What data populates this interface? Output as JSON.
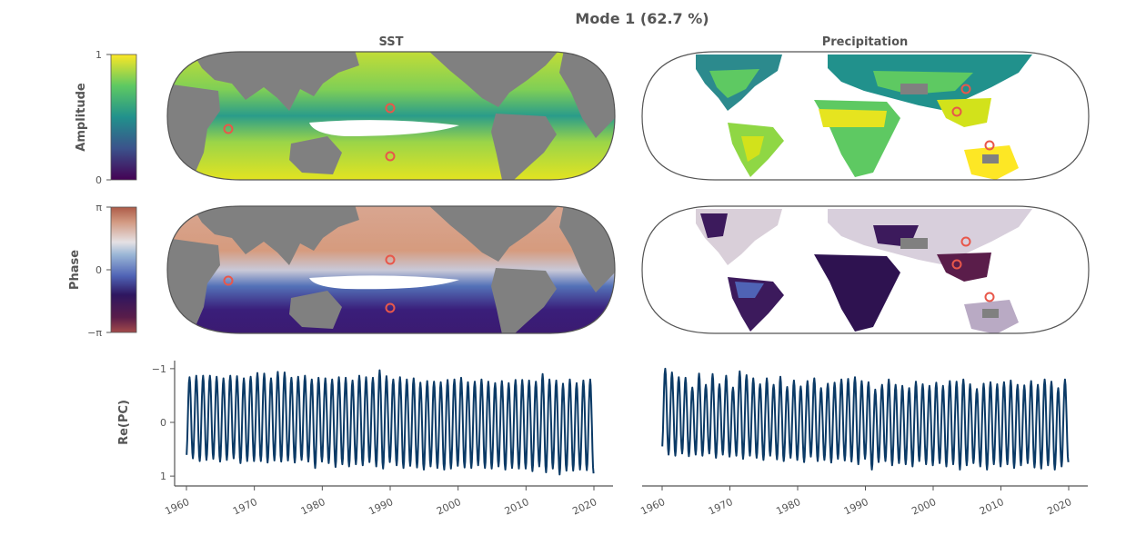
{
  "figure": {
    "suptitle": "Mode 1 (62.7 %)",
    "columns": [
      "SST",
      "Precipitation"
    ],
    "amplitude_colorbar": {
      "label": "Amplitude",
      "ticks": [
        "0",
        "1"
      ],
      "colormap": "viridis"
    },
    "phase_colorbar": {
      "label": "Phase",
      "ticks": [
        "−π",
        "0",
        "π"
      ],
      "colormap": "twilight_shifted"
    },
    "colors": {
      "land": "#808080",
      "line": "#0b3a66",
      "marker": "#e8574a",
      "frame": "#555555"
    }
  },
  "chart_data": [
    {
      "type": "line",
      "panel": "SST",
      "ylabel": "Re(PC)",
      "ylim": [
        -1.15,
        1.15
      ],
      "yticks": [
        "−1",
        "0",
        "1"
      ],
      "xlim": [
        1959.5,
        2022.5
      ],
      "xticks": [
        "1960",
        "1970",
        "1980",
        "1990",
        "2000",
        "2010",
        "2020"
      ],
      "x_start": 1960.0,
      "x_step": 0.0833333,
      "peaks": [
        0.84,
        0.87,
        0.87,
        0.87,
        0.85,
        0.82,
        0.87,
        0.86,
        0.82,
        0.85,
        0.92,
        0.91,
        0.82,
        0.94,
        0.93,
        0.83,
        0.85,
        0.87,
        0.8,
        0.83,
        0.82,
        0.8,
        0.84,
        0.83,
        0.78,
        0.87,
        0.84,
        0.83,
        0.97,
        0.86,
        0.8,
        0.84,
        0.8,
        0.82,
        0.74,
        0.77,
        0.76,
        0.75,
        0.79,
        0.8,
        0.83,
        0.75,
        0.76,
        0.8,
        0.76,
        0.73,
        0.77,
        0.73,
        0.79,
        0.79,
        0.78,
        0.76,
        0.9,
        0.8,
        0.78,
        0.72,
        0.8,
        0.73,
        0.78,
        0.8,
        0.72
      ],
      "troughs": [
        -0.71,
        -0.67,
        -0.72,
        -0.7,
        -0.68,
        -0.73,
        -0.7,
        -0.67,
        -0.76,
        -0.72,
        -0.72,
        -0.72,
        -0.75,
        -0.71,
        -0.73,
        -0.71,
        -0.75,
        -0.7,
        -0.73,
        -0.85,
        -0.73,
        -0.76,
        -0.83,
        -0.78,
        -0.82,
        -0.78,
        -0.8,
        -0.74,
        -0.82,
        -0.86,
        -0.74,
        -0.8,
        -0.85,
        -0.81,
        -0.84,
        -0.88,
        -0.82,
        -0.85,
        -0.88,
        -0.86,
        -0.81,
        -0.84,
        -0.85,
        -0.8,
        -0.85,
        -0.86,
        -0.82,
        -0.88,
        -0.85,
        -0.86,
        -0.86,
        -0.91,
        -0.82,
        -0.93,
        -0.86,
        -0.97,
        -0.9,
        -0.9,
        -0.88,
        -0.89,
        -0.95
      ]
    },
    {
      "type": "line",
      "panel": "Precipitation",
      "ylim": [
        -1.15,
        1.15
      ],
      "xlim": [
        1959.5,
        2022.5
      ],
      "xticks": [
        "1960",
        "1970",
        "1980",
        "1990",
        "2000",
        "2010",
        "2020"
      ],
      "x_start": 1960.0,
      "x_step": 0.0833333,
      "peaks": [
        1.0,
        0.93,
        0.84,
        0.83,
        0.65,
        0.91,
        0.7,
        0.9,
        0.71,
        0.87,
        0.65,
        0.95,
        0.88,
        0.82,
        0.71,
        0.82,
        0.7,
        0.85,
        0.66,
        0.78,
        0.67,
        0.77,
        0.82,
        0.64,
        0.72,
        0.74,
        0.8,
        0.81,
        0.84,
        0.77,
        0.75,
        0.61,
        0.7,
        0.8,
        0.7,
        0.68,
        0.64,
        0.76,
        0.71,
        0.68,
        0.74,
        0.68,
        0.77,
        0.76,
        0.8,
        0.71,
        0.62,
        0.72,
        0.75,
        0.71,
        0.75,
        0.78,
        0.7,
        0.69,
        0.77,
        0.7,
        0.8,
        0.76,
        0.64,
        0.8,
        0.68
      ],
      "troughs": [
        -0.55,
        -0.6,
        -0.62,
        -0.58,
        -0.63,
        -0.6,
        -0.62,
        -0.58,
        -0.66,
        -0.6,
        -0.64,
        -0.62,
        -0.68,
        -0.62,
        -0.66,
        -0.7,
        -0.62,
        -0.69,
        -0.72,
        -0.66,
        -0.7,
        -0.74,
        -0.64,
        -0.72,
        -0.7,
        -0.75,
        -0.68,
        -0.71,
        -0.73,
        -0.78,
        -0.68,
        -0.88,
        -0.74,
        -0.72,
        -0.8,
        -0.76,
        -0.78,
        -0.82,
        -0.72,
        -0.78,
        -0.8,
        -0.76,
        -0.82,
        -0.78,
        -0.88,
        -0.8,
        -0.76,
        -0.82,
        -0.88,
        -0.78,
        -0.82,
        -0.78,
        -0.85,
        -0.8,
        -0.76,
        -0.84,
        -0.86,
        -0.8,
        -0.88,
        -0.82,
        -0.74
      ]
    }
  ]
}
